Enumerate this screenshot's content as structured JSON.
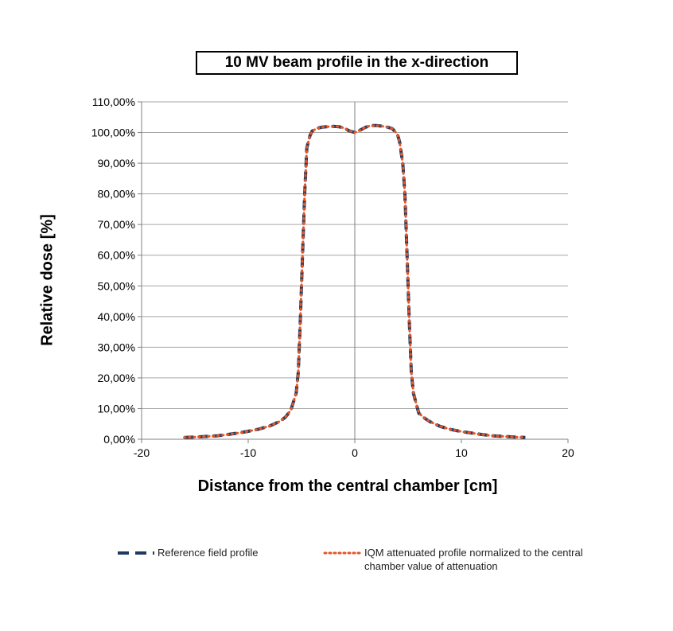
{
  "chart_data": {
    "type": "line",
    "title": "10 MV beam profile in the x-direction",
    "xlabel": "Distance from the central chamber [cm]",
    "ylabel": "Relative dose [%]",
    "xlim": [
      -20,
      20
    ],
    "ylim": [
      0,
      110
    ],
    "x_ticks": [
      {
        "value": -20,
        "label": "-20"
      },
      {
        "value": -10,
        "label": "-10"
      },
      {
        "value": 0,
        "label": "0"
      },
      {
        "value": 10,
        "label": "10"
      },
      {
        "value": 20,
        "label": "20"
      }
    ],
    "y_ticks": [
      {
        "value": 0,
        "label": "0,00%"
      },
      {
        "value": 10,
        "label": "10,00%"
      },
      {
        "value": 20,
        "label": "20,00%"
      },
      {
        "value": 30,
        "label": "30,00%"
      },
      {
        "value": 40,
        "label": "40,00%"
      },
      {
        "value": 50,
        "label": "50,00%"
      },
      {
        "value": 60,
        "label": "60,00%"
      },
      {
        "value": 70,
        "label": "70,00%"
      },
      {
        "value": 80,
        "label": "80,00%"
      },
      {
        "value": 90,
        "label": "90,00%"
      },
      {
        "value": 100,
        "label": "100,00%"
      },
      {
        "value": 110,
        "label": "110,00%"
      }
    ],
    "grid": true,
    "legend_position": "bottom",
    "series": [
      {
        "name": "Reference field profile",
        "style": "dashed",
        "color": "#1f3a5f",
        "x": [
          -16,
          -15,
          -14,
          -13,
          -12,
          -11,
          -10,
          -9,
          -8,
          -7,
          -6.5,
          -6,
          -5.5,
          -5.3,
          -5.1,
          -5,
          -4.9,
          -4.7,
          -4.5,
          -4.2,
          -4,
          -3.5,
          -3,
          -2.5,
          -2,
          -1.5,
          -1,
          -0.5,
          0,
          0.5,
          1,
          1.5,
          2,
          2.5,
          3,
          3.5,
          4,
          4.2,
          4.5,
          4.7,
          4.9,
          5,
          5.1,
          5.3,
          5.5,
          6,
          6.5,
          7,
          8,
          9,
          10,
          11,
          12,
          13,
          14,
          15,
          16
        ],
        "y": [
          0.6,
          0.7,
          0.9,
          1.1,
          1.5,
          2.0,
          2.6,
          3.3,
          4.3,
          5.9,
          7.2,
          9.5,
          15.0,
          22.0,
          40.0,
          50.0,
          60.0,
          80.0,
          95.0,
          99.0,
          100.5,
          101.4,
          101.8,
          101.9,
          102.0,
          101.9,
          101.5,
          100.5,
          100.0,
          100.8,
          101.7,
          102.3,
          102.3,
          102.1,
          101.8,
          101.3,
          99.5,
          97.0,
          90.0,
          80.0,
          60.0,
          50.0,
          40.0,
          22.0,
          15.0,
          8.5,
          7.0,
          5.8,
          4.2,
          3.2,
          2.5,
          2.0,
          1.5,
          1.1,
          0.9,
          0.7,
          0.6
        ]
      },
      {
        "name": "IQM attenuated profile normalized to the central chamber value of attenuation",
        "style": "dotted",
        "color": "#e2572a",
        "x": [
          -16,
          -15,
          -14,
          -13,
          -12,
          -11,
          -10,
          -9,
          -8,
          -7,
          -6.5,
          -6,
          -5.5,
          -5.3,
          -5.1,
          -5,
          -4.9,
          -4.7,
          -4.5,
          -4.2,
          -4,
          -3.5,
          -3,
          -2.5,
          -2,
          -1.5,
          -1,
          -0.5,
          0,
          0.5,
          1,
          1.5,
          2,
          2.5,
          3,
          3.5,
          4,
          4.2,
          4.5,
          4.7,
          4.9,
          5,
          5.1,
          5.3,
          5.5,
          6,
          6.5,
          7,
          8,
          9,
          10,
          11,
          12,
          13,
          14,
          15,
          16
        ],
        "y": [
          0.6,
          0.7,
          0.9,
          1.1,
          1.5,
          2.0,
          2.6,
          3.3,
          4.3,
          5.9,
          7.2,
          9.5,
          15.0,
          22.0,
          40.0,
          50.0,
          60.0,
          80.0,
          95.0,
          99.0,
          100.5,
          101.4,
          101.8,
          101.9,
          102.0,
          101.9,
          101.5,
          100.5,
          100.0,
          100.8,
          101.7,
          102.3,
          102.3,
          102.1,
          101.8,
          101.3,
          99.5,
          97.0,
          90.0,
          80.0,
          60.0,
          50.0,
          40.0,
          22.0,
          15.0,
          8.5,
          7.0,
          5.8,
          4.2,
          3.2,
          2.5,
          2.0,
          1.5,
          1.1,
          0.9,
          0.7,
          0.6
        ]
      }
    ]
  },
  "legend": {
    "reference_label": "Reference field profile",
    "iqm_label": "IQM attenuated profile normalized to the central chamber value of attenuation"
  }
}
